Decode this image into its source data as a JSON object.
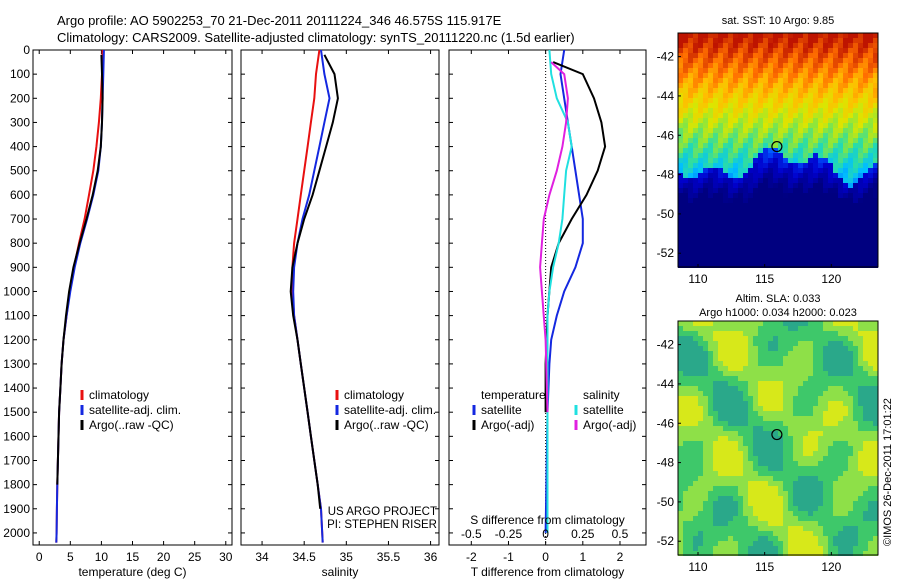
{
  "header": {
    "line1": "Argo profile: AO 5902253_70 21-Dec-2011 20111224_346 46.575S 115.917E",
    "line2": "Climatology: CARS2009. Satellite-adjusted climatology: synTS_20111220.nc (1.5d earlier)"
  },
  "credit": "©IMOS 26-Dec-2011 17:01:22",
  "colors": {
    "climatology": "#e81010",
    "satellite": "#1428e0",
    "argo": "#000000",
    "sal_satellite": "#20e0e0",
    "sal_argo": "#e020e0"
  },
  "chart_data": [
    {
      "type": "line",
      "xlabel": "temperature (deg C)",
      "xlim": [
        -1,
        31
      ],
      "xticks": [
        0,
        5,
        10,
        15,
        20,
        25,
        30
      ],
      "ylim": [
        2050,
        0
      ],
      "yticks": [
        0,
        100,
        200,
        300,
        400,
        500,
        600,
        700,
        800,
        900,
        1000,
        1100,
        1200,
        1300,
        1400,
        1500,
        1600,
        1700,
        1800,
        1900,
        2000
      ],
      "legend": [
        "climatology",
        "satellite-adj. clim.",
        "Argo(..raw -QC)"
      ],
      "series": [
        {
          "name": "climatology",
          "color": "#e81010",
          "x": [
            10.2,
            10.1,
            9.9,
            9.6,
            9.2,
            8.7,
            8.0,
            7.3,
            6.4,
            5.6,
            4.9,
            4.4,
            3.9,
            3.6,
            3.4,
            3.2,
            3.1,
            3.0,
            2.9,
            2.85,
            2.8,
            2.75
          ],
          "y": [
            0,
            100,
            200,
            300,
            400,
            500,
            600,
            700,
            800,
            900,
            1000,
            1100,
            1200,
            1300,
            1400,
            1500,
            1600,
            1700,
            1800,
            1900,
            2000,
            2040
          ]
        },
        {
          "name": "satellite-adj. clim.",
          "color": "#1428e0",
          "x": [
            10.4,
            10.3,
            10.2,
            10.1,
            9.9,
            9.5,
            8.7,
            7.7,
            6.6,
            5.7,
            5.0,
            4.4,
            3.9,
            3.6,
            3.4,
            3.2,
            3.1,
            3.0,
            2.9,
            2.85,
            2.8,
            2.75
          ],
          "y": [
            0,
            100,
            200,
            300,
            400,
            500,
            600,
            700,
            800,
            900,
            1000,
            1100,
            1200,
            1300,
            1400,
            1500,
            1600,
            1700,
            1800,
            1900,
            2000,
            2040
          ]
        },
        {
          "name": "Argo(..raw -QC)",
          "color": "#000000",
          "x": [
            10.0,
            10.1,
            10.2,
            10.1,
            9.9,
            9.4,
            8.6,
            7.6,
            6.5,
            5.5,
            4.8,
            4.3,
            3.9,
            3.6,
            3.4,
            3.2,
            3.1,
            3.0,
            2.9
          ],
          "y": [
            20,
            100,
            200,
            300,
            400,
            500,
            600,
            700,
            800,
            900,
            1000,
            1100,
            1200,
            1300,
            1400,
            1500,
            1600,
            1700,
            1800
          ]
        }
      ]
    },
    {
      "type": "line",
      "xlabel": "salinity",
      "xlim": [
        33.75,
        36.1
      ],
      "xticks": [
        34,
        34.5,
        35,
        35.5,
        36
      ],
      "ylim": [
        2050,
        0
      ],
      "legend": [
        "climatology",
        "satellite-adj. clim.",
        "Argo(..raw -QC)"
      ],
      "annotation": [
        "US ARGO PROJECT",
        "PI: STEPHEN RISER"
      ],
      "series": [
        {
          "name": "climatology",
          "color": "#e81010",
          "x": [
            34.68,
            34.64,
            34.62,
            34.58,
            34.54,
            34.5,
            34.46,
            34.42,
            34.38,
            34.36,
            34.36,
            34.38,
            34.42,
            34.46,
            34.5,
            34.54,
            34.58,
            34.62,
            34.66,
            34.7,
            34.72
          ],
          "y": [
            0,
            100,
            200,
            300,
            400,
            500,
            600,
            700,
            800,
            900,
            1000,
            1100,
            1200,
            1300,
            1400,
            1500,
            1600,
            1700,
            1800,
            1900,
            2040
          ]
        },
        {
          "name": "satellite-adj. clim.",
          "color": "#1428e0",
          "x": [
            34.7,
            34.74,
            34.8,
            34.74,
            34.68,
            34.62,
            34.56,
            34.48,
            34.42,
            34.38,
            34.37,
            34.38,
            34.42,
            34.46,
            34.5,
            34.54,
            34.58,
            34.62,
            34.66,
            34.7,
            34.72
          ],
          "y": [
            0,
            100,
            200,
            300,
            400,
            500,
            600,
            700,
            800,
            900,
            1000,
            1100,
            1200,
            1300,
            1400,
            1500,
            1600,
            1700,
            1800,
            1900,
            2040
          ]
        },
        {
          "name": "Argo(..raw -QC)",
          "color": "#000000",
          "x": [
            34.74,
            34.86,
            34.9,
            34.84,
            34.76,
            34.68,
            34.6,
            34.5,
            34.42,
            34.36,
            34.34,
            34.37,
            34.42,
            34.46,
            34.5,
            34.54,
            34.58,
            34.62,
            34.66,
            34.69
          ],
          "y": [
            20,
            100,
            200,
            300,
            400,
            500,
            600,
            700,
            800,
            900,
            1000,
            1100,
            1200,
            1300,
            1400,
            1500,
            1600,
            1700,
            1800,
            1900
          ]
        }
      ]
    },
    {
      "type": "line",
      "xlabel": "T difference from climatology",
      "xlabel_top": "S difference from climatology",
      "xlim": [
        -2.6,
        2.7
      ],
      "xticks": [
        -2,
        -1,
        0,
        1,
        2
      ],
      "xticks_top": [
        -0.5,
        -0.25,
        0,
        0.25,
        0.5
      ],
      "ylim": [
        2050,
        0
      ],
      "legend_temperature": [
        "temperature",
        "satellite",
        "Argo(-adj)"
      ],
      "legend_salinity": [
        "salinity",
        "satellite",
        "Argo(-adj)"
      ],
      "series": [
        {
          "name": "temperature satellite",
          "color": "#1428e0",
          "x": [
            0.5,
            0.4,
            0.5,
            0.6,
            0.7,
            0.8,
            0.9,
            1.0,
            1.0,
            0.8,
            0.5,
            0.3,
            0.15,
            0.1,
            0.05,
            0.0
          ],
          "y": [
            0,
            100,
            200,
            300,
            400,
            500,
            600,
            700,
            800,
            900,
            1000,
            1100,
            1200,
            1300,
            1500,
            2000
          ]
        },
        {
          "name": "temperature Argo(-adj)",
          "color": "#000000",
          "x": [
            0.2,
            1.0,
            1.3,
            1.5,
            1.6,
            1.4,
            1.1,
            0.7,
            0.35,
            0.15,
            0.05,
            0.0,
            0.0
          ],
          "y": [
            50,
            100,
            200,
            300,
            400,
            500,
            600,
            700,
            800,
            900,
            1100,
            1300,
            1500
          ]
        },
        {
          "name": "salinity satellite",
          "color": "#20e0e0",
          "x": [
            0.1,
            0.15,
            0.3,
            0.6,
            0.7,
            0.55,
            0.5,
            0.45,
            0.35,
            0.2,
            0.1,
            0.05,
            0.05,
            0.05
          ],
          "y": [
            0,
            100,
            200,
            300,
            400,
            500,
            600,
            700,
            800,
            900,
            1000,
            1100,
            1400,
            2000
          ]
        },
        {
          "name": "salinity Argo(-adj)",
          "color": "#e020e0",
          "x": [
            0.15,
            0.5,
            0.6,
            0.55,
            0.45,
            0.3,
            0.1,
            -0.05,
            -0.1,
            -0.15,
            -0.1,
            0.0,
            0.05
          ],
          "y": [
            50,
            100,
            200,
            300,
            400,
            500,
            600,
            700,
            800,
            900,
            1000,
            1200,
            1500
          ]
        }
      ]
    },
    {
      "type": "heatmap",
      "title": "sat. SST: 10 Argo: 9.85",
      "xticks": [
        110,
        115,
        120
      ],
      "yticks": [
        -42,
        -44,
        -46,
        -48,
        -50,
        -52
      ],
      "xlim": [
        108.5,
        123.5
      ],
      "ylim": [
        -52.7,
        -40.8
      ],
      "marker": {
        "lon": 115.917,
        "lat": -46.575
      }
    },
    {
      "type": "heatmap",
      "title": "Altim. SLA: 0.033",
      "subtitle": "Argo h1000: 0.034 h2000: 0.023",
      "xticks": [
        110,
        115,
        120
      ],
      "yticks": [
        -42,
        -44,
        -46,
        -48,
        -50,
        -52
      ],
      "xlim": [
        108.5,
        123.5
      ],
      "ylim": [
        -52.7,
        -40.8
      ],
      "marker": {
        "lon": 115.917,
        "lat": -46.575
      }
    }
  ]
}
